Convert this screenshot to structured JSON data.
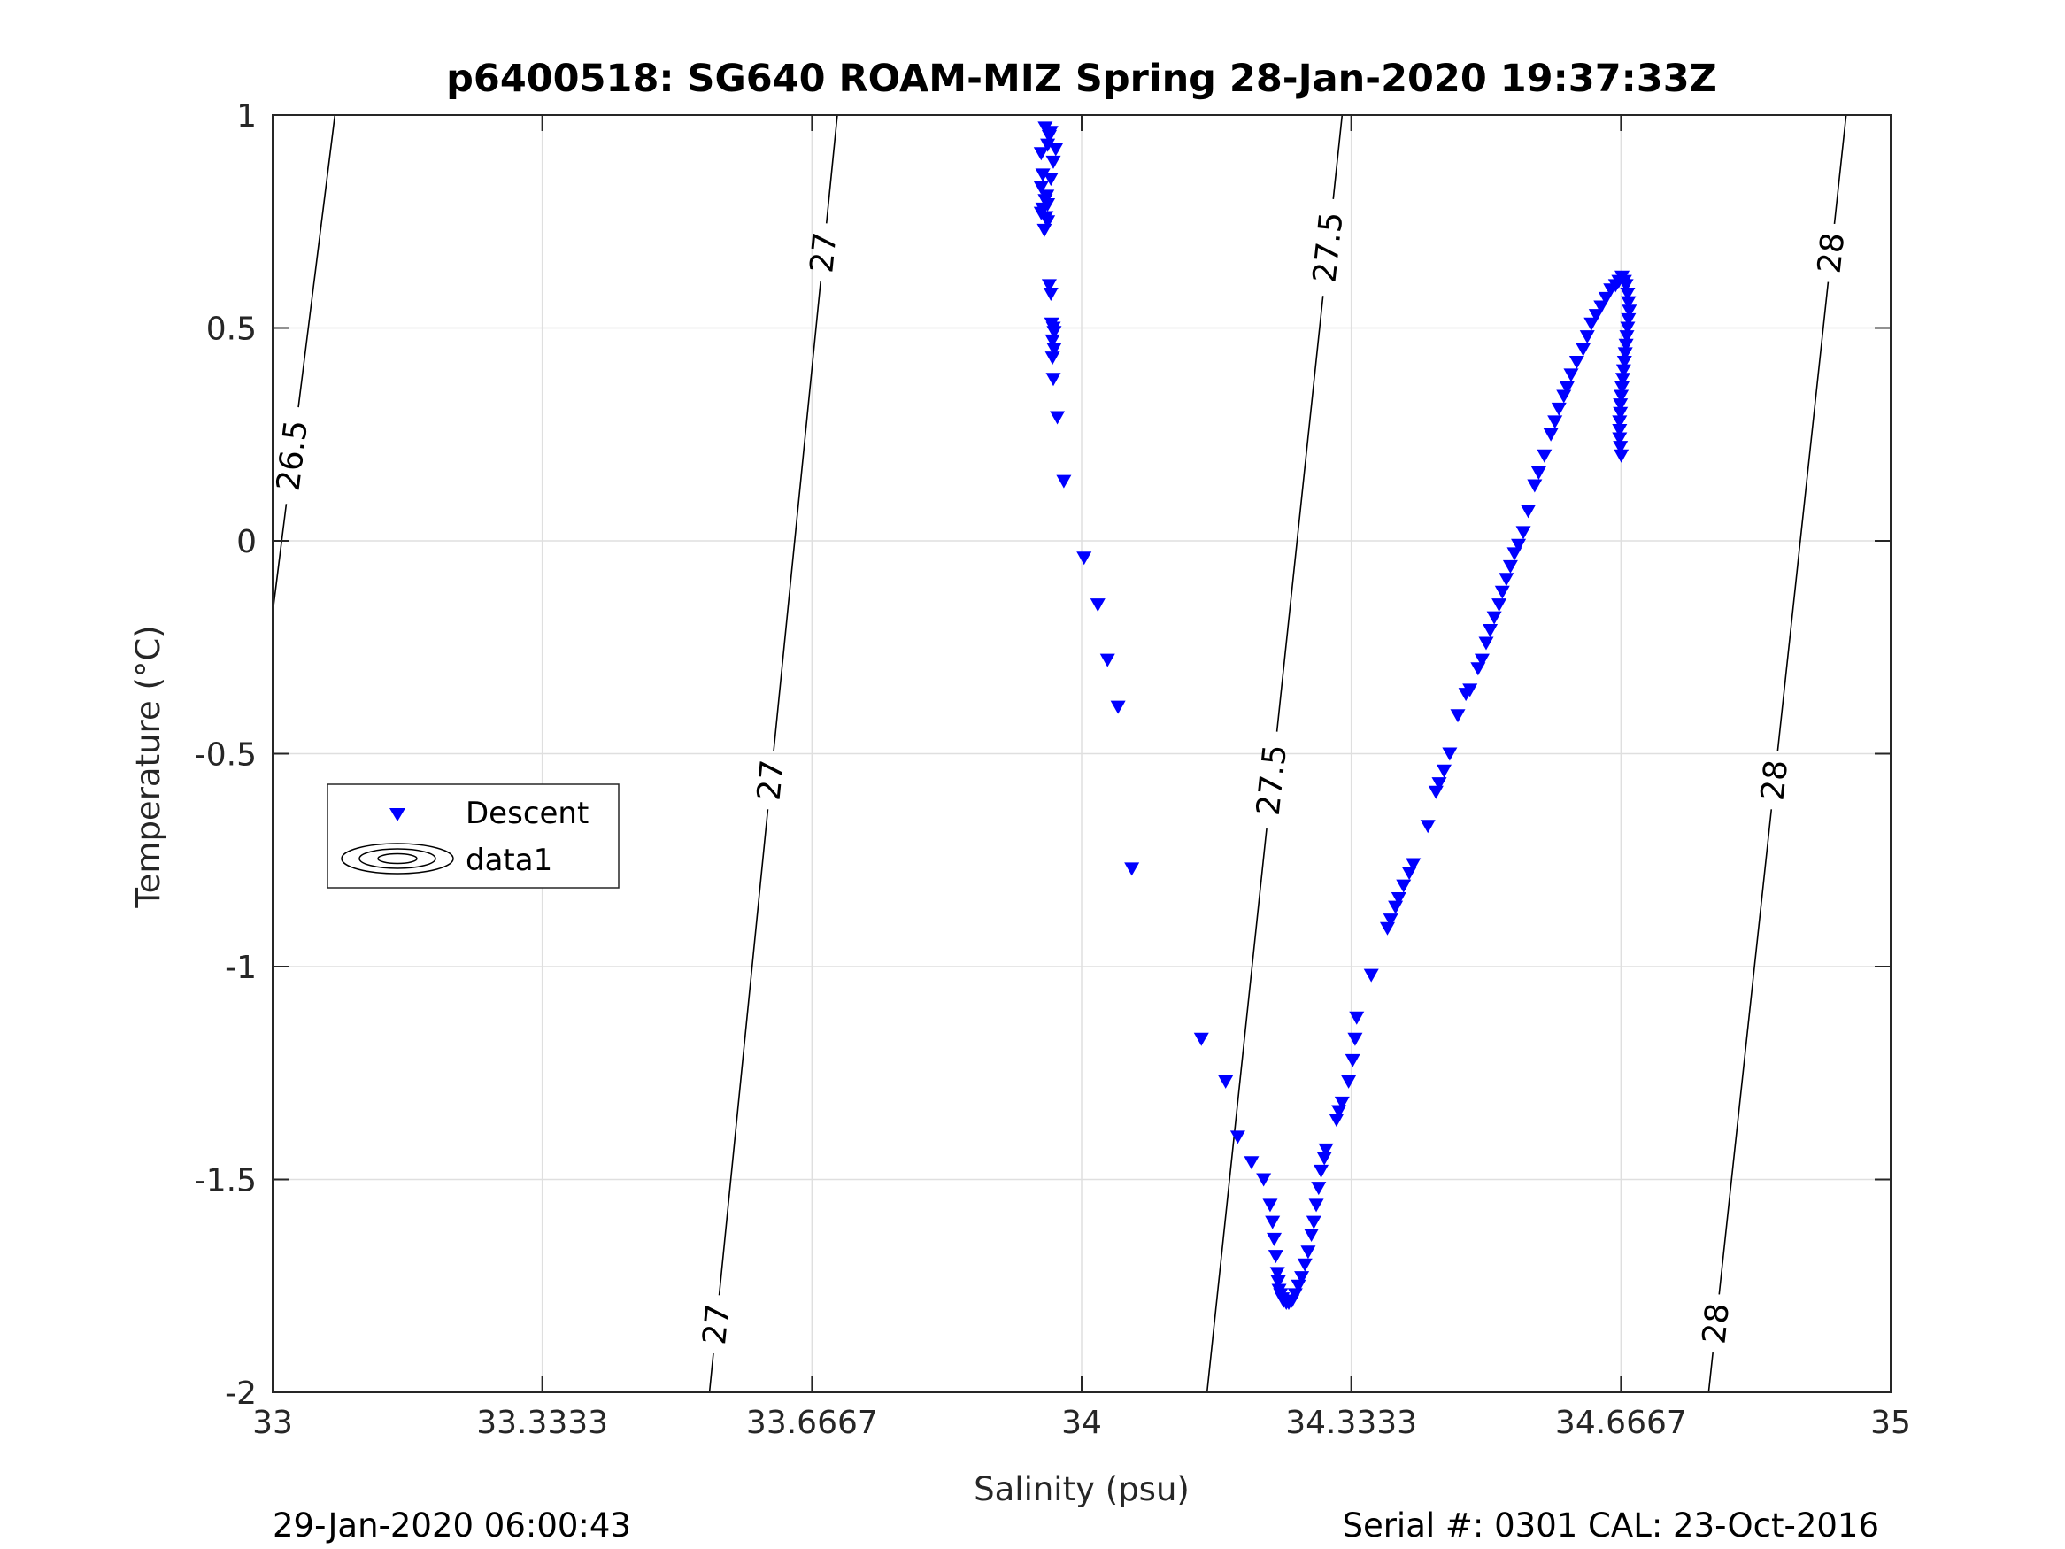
{
  "chart_data": {
    "type": "scatter",
    "title": "p6400518: SG640 ROAM-MIZ Spring 28-Jan-2020 19:37:33Z",
    "xlabel": "Salinity (psu)",
    "ylabel": "Temperature (°C)",
    "xlim": [
      33,
      35
    ],
    "ylim": [
      -2,
      1
    ],
    "xticks": [
      33,
      33.3333,
      33.6667,
      34,
      34.3333,
      34.6667,
      35
    ],
    "xtick_labels": [
      "33",
      "33.3333",
      "33.6667",
      "34",
      "34.3333",
      "34.6667",
      "35"
    ],
    "yticks": [
      -2,
      -1.5,
      -1,
      -0.5,
      0,
      0.5,
      1
    ],
    "ytick_labels": [
      "-2",
      "-1.5",
      "-1",
      "-0.5",
      "0",
      "0.5",
      "1"
    ],
    "grid": true,
    "legend_position": "middle-left",
    "legend": [
      {
        "label": "Descent",
        "marker": "triangle-down",
        "color": "#0000ff"
      },
      {
        "label": "data1",
        "marker": "contour",
        "color": "#000000"
      }
    ],
    "footer_left": "29-Jan-2020 06:00:43",
    "footer_right": "Serial #: 0301  CAL: 23-Oct-2016",
    "marker_color": "#0000ff",
    "contour_color": "#000000",
    "isopycnals": [
      {
        "level": "26.5",
        "points": [
          [
            33.0,
            -0.17
          ],
          [
            33.077,
            1.0
          ]
        ],
        "labels": [
          {
            "s": 33.025,
            "t": 0.2
          }
        ]
      },
      {
        "level": "27",
        "points": [
          [
            33.54,
            -2.0
          ],
          [
            33.698,
            1.0
          ]
        ],
        "labels": [
          {
            "s": 33.547,
            "t": -1.84
          },
          {
            "s": 33.604,
            "t": -0.56
          },
          {
            "s": 33.667,
            "t": 0.68
          }
        ]
      },
      {
        "level": "27.5",
        "points": [
          [
            34.155,
            -2.0
          ],
          [
            34.322,
            1.0
          ]
        ],
        "labels": [
          {
            "s": 34.225,
            "t": -0.56
          },
          {
            "s": 34.3,
            "t": 0.69
          }
        ]
      },
      {
        "level": "28",
        "points": [
          [
            34.775,
            -2.0
          ],
          [
            34.945,
            1.0
          ]
        ],
        "labels": [
          {
            "s": 34.792,
            "t": -1.84
          },
          {
            "s": 34.845,
            "t": -0.56
          },
          {
            "s": 34.908,
            "t": 0.68
          }
        ]
      }
    ],
    "series": [
      {
        "name": "Descent",
        "marker": "triangle-down",
        "points": [
          [
            33.955,
            0.97
          ],
          [
            33.962,
            0.96
          ],
          [
            33.96,
            0.95
          ],
          [
            33.958,
            0.93
          ],
          [
            33.968,
            0.92
          ],
          [
            33.95,
            0.91
          ],
          [
            33.965,
            0.89
          ],
          [
            33.952,
            0.86
          ],
          [
            33.962,
            0.85
          ],
          [
            33.95,
            0.83
          ],
          [
            33.957,
            0.81
          ],
          [
            33.955,
            0.8
          ],
          [
            33.958,
            0.79
          ],
          [
            33.952,
            0.78
          ],
          [
            33.95,
            0.77
          ],
          [
            33.956,
            0.76
          ],
          [
            33.958,
            0.75
          ],
          [
            33.954,
            0.73
          ],
          [
            33.96,
            0.6
          ],
          [
            33.962,
            0.58
          ],
          [
            33.963,
            0.51
          ],
          [
            33.965,
            0.5
          ],
          [
            33.966,
            0.49
          ],
          [
            33.964,
            0.47
          ],
          [
            33.966,
            0.45
          ],
          [
            33.964,
            0.43
          ],
          [
            33.965,
            0.38
          ],
          [
            33.97,
            0.29
          ],
          [
            33.978,
            0.14
          ],
          [
            34.003,
            -0.04
          ],
          [
            34.02,
            -0.15
          ],
          [
            34.032,
            -0.28
          ],
          [
            34.045,
            -0.39
          ],
          [
            34.062,
            -0.77
          ],
          [
            34.148,
            -1.17
          ],
          [
            34.178,
            -1.27
          ],
          [
            34.193,
            -1.4
          ],
          [
            34.21,
            -1.46
          ],
          [
            34.225,
            -1.5
          ],
          [
            34.233,
            -1.56
          ],
          [
            34.236,
            -1.6
          ],
          [
            34.238,
            -1.64
          ],
          [
            34.24,
            -1.68
          ],
          [
            34.242,
            -1.72
          ],
          [
            34.243,
            -1.74
          ],
          [
            34.244,
            -1.76
          ],
          [
            34.246,
            -1.77
          ],
          [
            34.248,
            -1.78
          ],
          [
            34.25,
            -1.785
          ],
          [
            34.253,
            -1.79
          ],
          [
            34.256,
            -1.79
          ],
          [
            34.26,
            -1.785
          ],
          [
            34.264,
            -1.77
          ],
          [
            34.268,
            -1.75
          ],
          [
            34.272,
            -1.73
          ],
          [
            34.276,
            -1.7
          ],
          [
            34.28,
            -1.67
          ],
          [
            34.284,
            -1.63
          ],
          [
            34.287,
            -1.6
          ],
          [
            34.29,
            -1.56
          ],
          [
            34.293,
            -1.52
          ],
          [
            34.296,
            -1.48
          ],
          [
            34.3,
            -1.45
          ],
          [
            34.302,
            -1.43
          ],
          [
            34.315,
            -1.36
          ],
          [
            34.318,
            -1.34
          ],
          [
            34.322,
            -1.32
          ],
          [
            34.33,
            -1.27
          ],
          [
            34.335,
            -1.22
          ],
          [
            34.338,
            -1.17
          ],
          [
            34.34,
            -1.12
          ],
          [
            34.358,
            -1.02
          ],
          [
            34.378,
            -0.91
          ],
          [
            34.382,
            -0.89
          ],
          [
            34.388,
            -0.86
          ],
          [
            34.392,
            -0.84
          ],
          [
            34.398,
            -0.81
          ],
          [
            34.405,
            -0.78
          ],
          [
            34.41,
            -0.76
          ],
          [
            34.428,
            -0.67
          ],
          [
            34.438,
            -0.59
          ],
          [
            34.442,
            -0.57
          ],
          [
            34.448,
            -0.54
          ],
          [
            34.455,
            -0.5
          ],
          [
            34.465,
            -0.41
          ],
          [
            34.475,
            -0.36
          ],
          [
            34.48,
            -0.35
          ],
          [
            34.49,
            -0.3
          ],
          [
            34.495,
            -0.28
          ],
          [
            34.5,
            -0.24
          ],
          [
            34.505,
            -0.21
          ],
          [
            34.51,
            -0.18
          ],
          [
            34.516,
            -0.15
          ],
          [
            34.52,
            -0.12
          ],
          [
            34.525,
            -0.09
          ],
          [
            34.53,
            -0.06
          ],
          [
            34.535,
            -0.03
          ],
          [
            34.54,
            -0.01
          ],
          [
            34.546,
            0.02
          ],
          [
            34.552,
            0.07
          ],
          [
            34.56,
            0.13
          ],
          [
            34.565,
            0.16
          ],
          [
            34.572,
            0.2
          ],
          [
            34.58,
            0.25
          ],
          [
            34.585,
            0.28
          ],
          [
            34.59,
            0.31
          ],
          [
            34.596,
            0.34
          ],
          [
            34.6,
            0.36
          ],
          [
            34.605,
            0.39
          ],
          [
            34.612,
            0.42
          ],
          [
            34.62,
            0.45
          ],
          [
            34.625,
            0.48
          ],
          [
            34.63,
            0.51
          ],
          [
            34.636,
            0.53
          ],
          [
            34.642,
            0.55
          ],
          [
            34.648,
            0.57
          ],
          [
            34.654,
            0.59
          ],
          [
            34.66,
            0.6
          ],
          [
            34.664,
            0.61
          ],
          [
            34.668,
            0.62
          ],
          [
            34.671,
            0.61
          ],
          [
            34.673,
            0.6
          ],
          [
            34.675,
            0.58
          ],
          [
            34.676,
            0.56
          ],
          [
            34.677,
            0.54
          ],
          [
            34.676,
            0.52
          ],
          [
            34.675,
            0.5
          ],
          [
            34.674,
            0.48
          ],
          [
            34.673,
            0.46
          ],
          [
            34.672,
            0.44
          ],
          [
            34.671,
            0.42
          ],
          [
            34.67,
            0.4
          ],
          [
            34.669,
            0.38
          ],
          [
            34.668,
            0.36
          ],
          [
            34.667,
            0.34
          ],
          [
            34.666,
            0.32
          ],
          [
            34.666,
            0.3
          ],
          [
            34.665,
            0.28
          ],
          [
            34.665,
            0.26
          ],
          [
            34.665,
            0.24
          ],
          [
            34.666,
            0.22
          ],
          [
            34.667,
            0.2
          ]
        ]
      }
    ]
  }
}
